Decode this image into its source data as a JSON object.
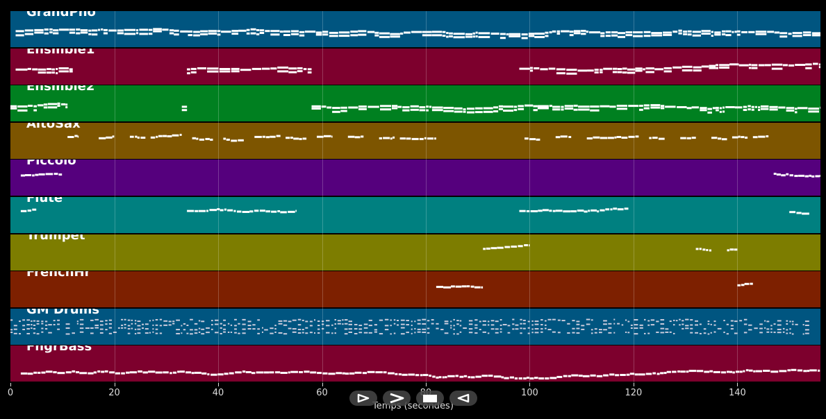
{
  "tracks": [
    {
      "name": "GrandPno",
      "color": "#005580"
    },
    {
      "name": "Ensmble1",
      "color": "#7d002d"
    },
    {
      "name": "Ensmble2",
      "color": "#008020"
    },
    {
      "name": "AltoSax",
      "color": "#7d5500"
    },
    {
      "name": "Piccolo",
      "color": "#55007d"
    },
    {
      "name": "Flute",
      "color": "#008080"
    },
    {
      "name": "Trumpet",
      "color": "#7d7d00"
    },
    {
      "name": "FrenchHr",
      "color": "#7d2000"
    },
    {
      "name": "GM Drums",
      "color": "#005580"
    },
    {
      "name": "FngrBass",
      "color": "#7d002d"
    }
  ],
  "x_axis": {
    "label": "Temps (secondes)",
    "min": 0,
    "max": 156,
    "ticks": [
      0,
      20,
      40,
      60,
      80,
      100,
      120,
      140
    ]
  },
  "controls": [
    {
      "name": "play-button",
      "icon": "play-icon"
    },
    {
      "name": "forward-button",
      "icon": "forward-icon"
    },
    {
      "name": "stop-button",
      "icon": "stop-icon"
    },
    {
      "name": "rewind-button",
      "icon": "rewind-icon"
    }
  ],
  "activity": {
    "GrandPno": [
      [
        1,
        156
      ]
    ],
    "Ensmble1": [
      [
        1,
        12
      ],
      [
        34,
        58
      ],
      [
        98,
        156
      ]
    ],
    "Ensmble2": [
      [
        0,
        11
      ],
      [
        33,
        34
      ],
      [
        58,
        156
      ]
    ],
    "AltoSax": [
      [
        11,
        13
      ],
      [
        17,
        20
      ],
      [
        23,
        26
      ],
      [
        27,
        33
      ],
      [
        35,
        39
      ],
      [
        41,
        45
      ],
      [
        47,
        52
      ],
      [
        53,
        57
      ],
      [
        59,
        62
      ],
      [
        65,
        68
      ],
      [
        71,
        74
      ],
      [
        75,
        82
      ],
      [
        99,
        102
      ],
      [
        105,
        108
      ],
      [
        111,
        121
      ],
      [
        123,
        126
      ],
      [
        129,
        132
      ],
      [
        135,
        138
      ],
      [
        139,
        142
      ],
      [
        143,
        146
      ]
    ],
    "Piccolo": [
      [
        2,
        10
      ],
      [
        147,
        156
      ]
    ],
    "Flute": [
      [
        2,
        5
      ],
      [
        34,
        55
      ],
      [
        98,
        119
      ],
      [
        150,
        154
      ]
    ],
    "Trumpet": [
      [
        91,
        100
      ],
      [
        132,
        135
      ],
      [
        138,
        140
      ]
    ],
    "FrenchHr": [
      [
        82,
        91
      ],
      [
        140,
        143
      ]
    ],
    "GM Drums": [
      [
        0,
        154
      ]
    ],
    "FngrBass": [
      [
        2,
        156
      ]
    ]
  }
}
